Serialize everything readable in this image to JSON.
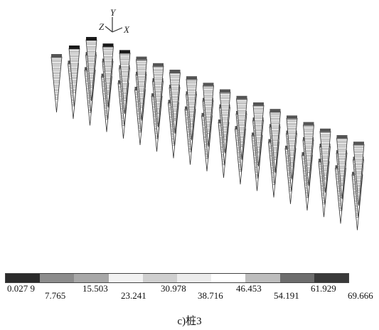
{
  "axes": {
    "y": "Y",
    "z": "Z",
    "x": "X"
  },
  "legend": {
    "labels": [
      "0.027 9",
      "7.765",
      "15.503",
      "23.241",
      "30.978",
      "38.716",
      "46.453",
      "54.191",
      "61.929",
      "69.666"
    ],
    "colors": [
      "#2b2b2b",
      "#8c8c8c",
      "#a8a8a8",
      "#f2f2f2",
      "#cfcfcf",
      "#ececec",
      "#ffffff",
      "#bdbdbd",
      "#6d6d6d",
      "#3a3a3a"
    ]
  },
  "caption": "c)桩3"
}
